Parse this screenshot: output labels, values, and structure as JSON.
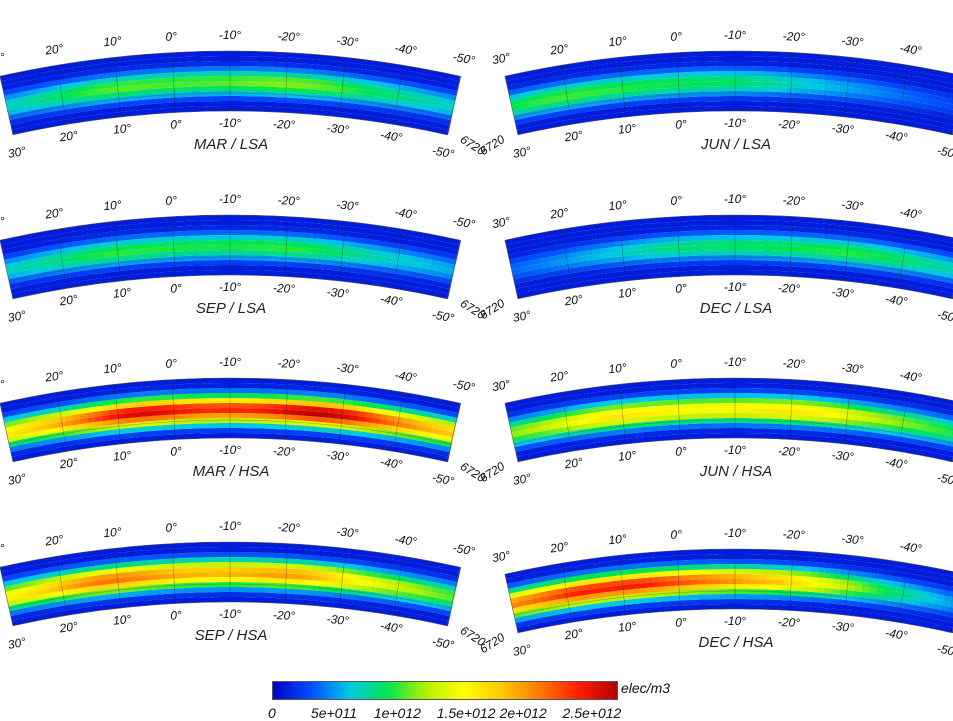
{
  "chart_data": {
    "type": "heatmap",
    "colorbar": {
      "unit": "elec/m3",
      "ticks": [
        "0",
        "5e+011",
        "1e+012",
        "1.5e+012",
        "2e+012",
        "2.5e+012"
      ],
      "tick_values": [
        0,
        500000000000.0,
        1000000000000.0,
        1500000000000.0,
        2000000000000.0,
        2500000000000.0
      ],
      "range": [
        0,
        2750000000000.0
      ],
      "colors": [
        "#0000c8",
        "#0050ff",
        "#00c8e6",
        "#00e650",
        "#b4f000",
        "#ffff00",
        "#ffc800",
        "#ff7800",
        "#ff1e00",
        "#b40000"
      ]
    },
    "latitude_ticks_outer": [
      "30°",
      "20°",
      "10°",
      "0°",
      "-10°",
      "-20°",
      "-30°",
      "-40°",
      "-50°"
    ],
    "latitude_ticks_inner": [
      "30°",
      "20°",
      "10°",
      "0°",
      "-10°",
      "-20°",
      "-30°",
      "-40°",
      "-50°"
    ],
    "latitude_values": [
      30,
      20,
      10,
      0,
      -10,
      -20,
      -30,
      -40,
      -50
    ],
    "radius_label": "6720",
    "panels": [
      {
        "title": "MAR / LSA",
        "peak_density": 1050000000000.0,
        "peak_latitude": -5,
        "crest_spread": 0.22,
        "asymmetry": 0.1
      },
      {
        "title": "JUN / LSA",
        "peak_density": 950000000000.0,
        "peak_latitude": 5,
        "crest_spread": 0.15,
        "asymmetry": -0.2
      },
      {
        "title": "SEP / LSA",
        "peak_density": 950000000000.0,
        "peak_latitude": -5,
        "crest_spread": 0.2,
        "asymmetry": 0.0
      },
      {
        "title": "DEC / LSA",
        "peak_density": 900000000000.0,
        "peak_latitude": -15,
        "crest_spread": 0.15,
        "asymmetry": 0.2
      },
      {
        "title": "MAR / HSA",
        "peak_density": 2400000000000.0,
        "peak_latitude": -10,
        "crest_spread": 0.32,
        "asymmetry": 0.05
      },
      {
        "title": "JUN / HSA",
        "peak_density": 1550000000000.0,
        "peak_latitude": -5,
        "crest_spread": 0.25,
        "asymmetry": 0.0
      },
      {
        "title": "SEP / HSA",
        "peak_density": 1900000000000.0,
        "peak_latitude": -5,
        "crest_spread": 0.28,
        "asymmetry": -0.1
      },
      {
        "title": "DEC / HSA",
        "peak_density": 2150000000000.0,
        "peak_latitude": -5,
        "crest_spread": 0.14,
        "asymmetry": -0.5
      }
    ]
  }
}
